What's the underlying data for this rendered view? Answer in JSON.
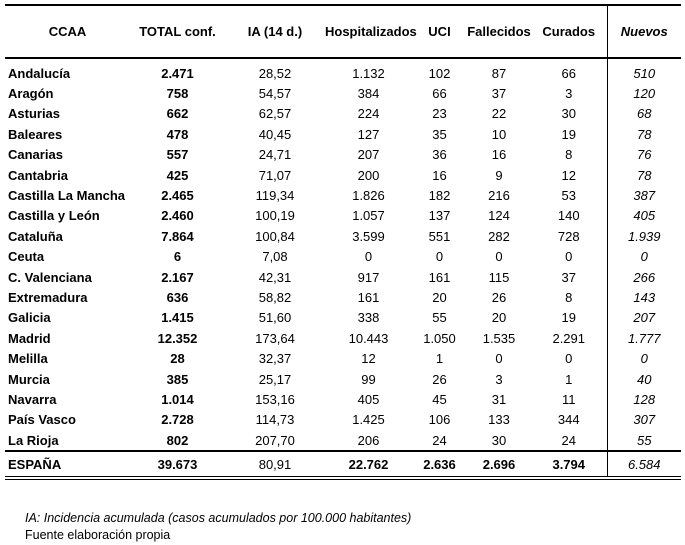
{
  "table": {
    "headers": [
      "CCAA",
      "TOTAL conf.",
      "IA (14 d.)",
      "Hospitalizados",
      "UCI",
      "Fallecidos",
      "Curados",
      "Nuevos"
    ],
    "rows": [
      {
        "ccaa": "Andalucía",
        "values": [
          "2.471",
          "28,52",
          "1.132",
          "102",
          "87",
          "66",
          "510"
        ]
      },
      {
        "ccaa": "Aragón",
        "values": [
          "758",
          "54,57",
          "384",
          "66",
          "37",
          "3",
          "120"
        ]
      },
      {
        "ccaa": "Asturias",
        "values": [
          "662",
          "62,57",
          "224",
          "23",
          "22",
          "30",
          "68"
        ]
      },
      {
        "ccaa": "Baleares",
        "values": [
          "478",
          "40,45",
          "127",
          "35",
          "10",
          "19",
          "78"
        ]
      },
      {
        "ccaa": "Canarias",
        "values": [
          "557",
          "24,71",
          "207",
          "36",
          "16",
          "8",
          "76"
        ]
      },
      {
        "ccaa": "Cantabria",
        "values": [
          "425",
          "71,07",
          "200",
          "16",
          "9",
          "12",
          "78"
        ]
      },
      {
        "ccaa": "Castilla La Mancha",
        "values": [
          "2.465",
          "119,34",
          "1.826",
          "182",
          "216",
          "53",
          "387"
        ]
      },
      {
        "ccaa": "Castilla y León",
        "values": [
          "2.460",
          "100,19",
          "1.057",
          "137",
          "124",
          "140",
          "405"
        ]
      },
      {
        "ccaa": "Cataluña",
        "values": [
          "7.864",
          "100,84",
          "3.599",
          "551",
          "282",
          "728",
          "1.939"
        ]
      },
      {
        "ccaa": "Ceuta",
        "values": [
          "6",
          "7,08",
          "0",
          "0",
          "0",
          "0",
          "0"
        ]
      },
      {
        "ccaa": "C. Valenciana",
        "values": [
          "2.167",
          "42,31",
          "917",
          "161",
          "115",
          "37",
          "266"
        ]
      },
      {
        "ccaa": "Extremadura",
        "values": [
          "636",
          "58,82",
          "161",
          "20",
          "26",
          "8",
          "143"
        ]
      },
      {
        "ccaa": "Galicia",
        "values": [
          "1.415",
          "51,60",
          "338",
          "55",
          "20",
          "19",
          "207"
        ]
      },
      {
        "ccaa": "Madrid",
        "values": [
          "12.352",
          "173,64",
          "10.443",
          "1.050",
          "1.535",
          "2.291",
          "1.777"
        ]
      },
      {
        "ccaa": "Melilla",
        "values": [
          "28",
          "32,37",
          "12",
          "1",
          "0",
          "0",
          "0"
        ]
      },
      {
        "ccaa": "Murcia",
        "values": [
          "385",
          "25,17",
          "99",
          "26",
          "3",
          "1",
          "40"
        ]
      },
      {
        "ccaa": "Navarra",
        "values": [
          "1.014",
          "153,16",
          "405",
          "45",
          "31",
          "11",
          "128"
        ]
      },
      {
        "ccaa": "País Vasco",
        "values": [
          "2.728",
          "114,73",
          "1.425",
          "106",
          "133",
          "344",
          "307"
        ]
      },
      {
        "ccaa": "La Rioja",
        "values": [
          "802",
          "207,70",
          "206",
          "24",
          "30",
          "24",
          "55"
        ]
      }
    ],
    "total_row": {
      "ccaa": "ESPAÑA",
      "values": [
        "39.673",
        "80,91",
        "22.762",
        "2.636",
        "2.696",
        "3.794",
        "6.584"
      ]
    }
  },
  "footnotes": {
    "ia_note": "IA: Incidencia acumulada (casos acumulados por 100.000 habitantes)",
    "source": "Fuente elaboración propia"
  }
}
